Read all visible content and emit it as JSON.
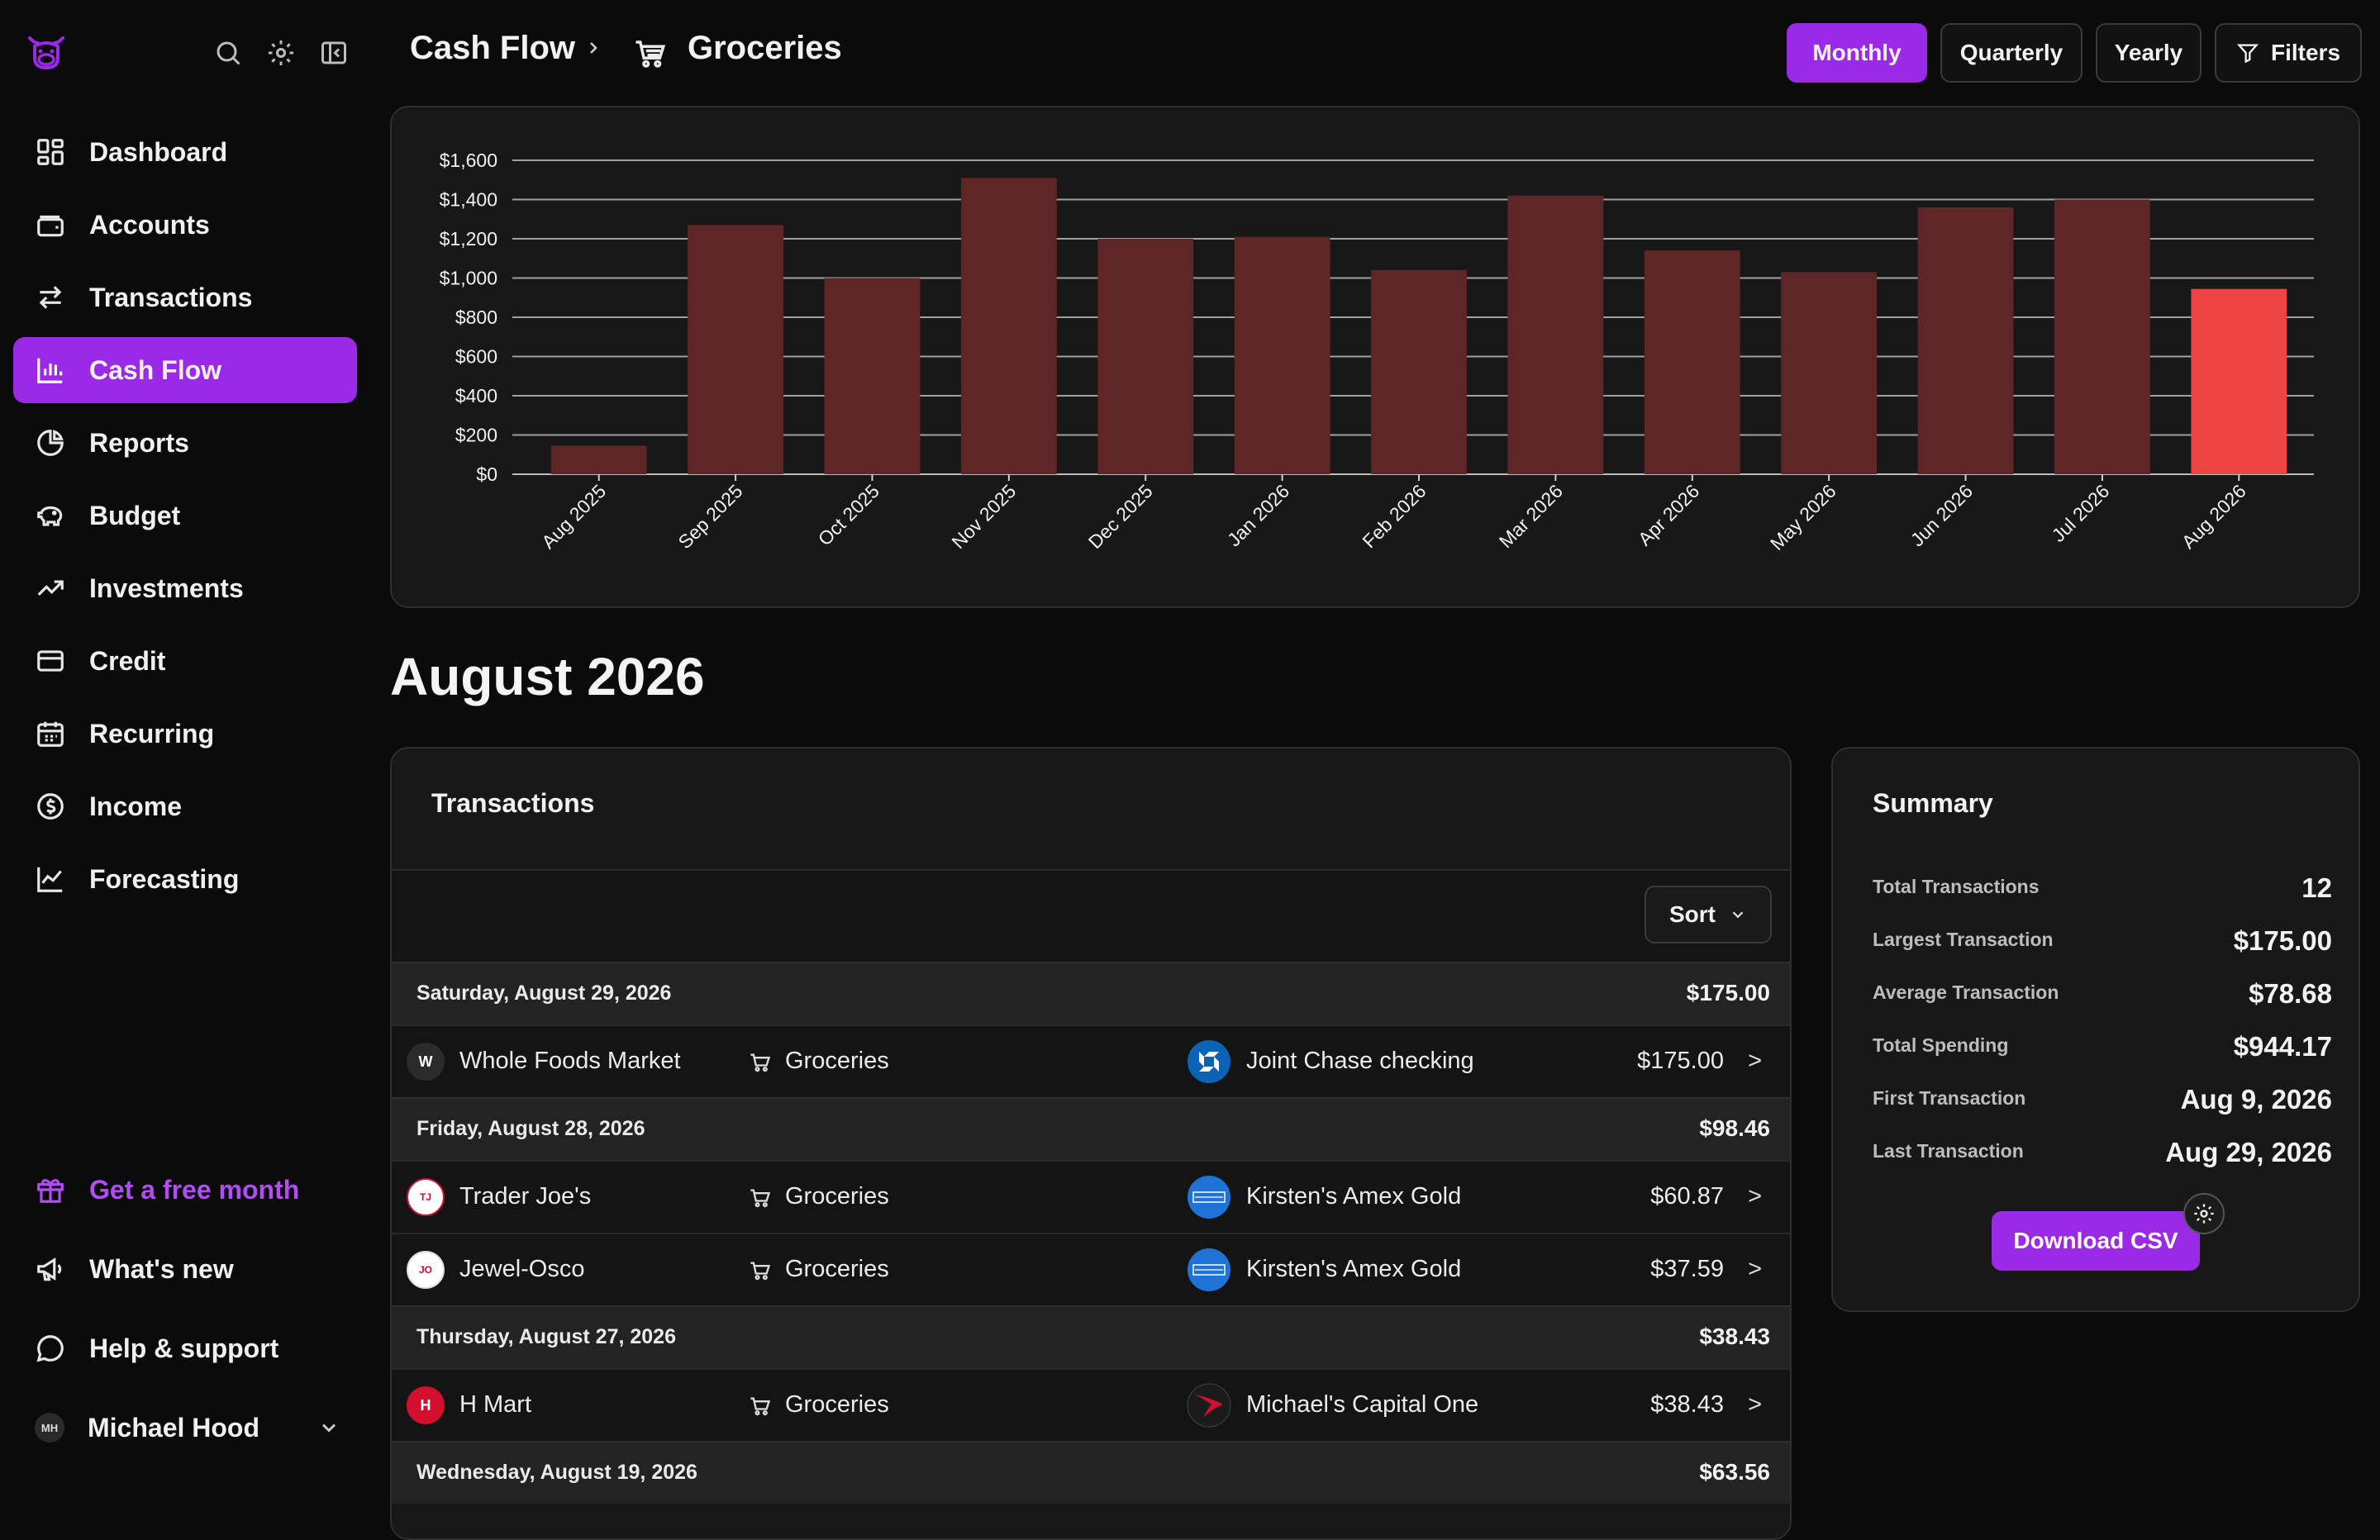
{
  "sidebar": {
    "items": [
      {
        "label": "Dashboard",
        "icon": "dashboard-icon",
        "active": false
      },
      {
        "label": "Accounts",
        "icon": "wallet-icon",
        "active": false
      },
      {
        "label": "Transactions",
        "icon": "arrows-swap-icon",
        "active": false
      },
      {
        "label": "Cash Flow",
        "icon": "bar-chart-icon",
        "active": true
      },
      {
        "label": "Reports",
        "icon": "pie-chart-icon",
        "active": false
      },
      {
        "label": "Budget",
        "icon": "piggy-bank-icon",
        "active": false
      },
      {
        "label": "Investments",
        "icon": "trend-up-icon",
        "active": false
      },
      {
        "label": "Credit",
        "icon": "credit-card-icon",
        "active": false
      },
      {
        "label": "Recurring",
        "icon": "calendar-icon",
        "active": false
      },
      {
        "label": "Income",
        "icon": "dollar-circle-icon",
        "active": false
      },
      {
        "label": "Forecasting",
        "icon": "line-chart-icon",
        "active": false
      }
    ],
    "promo": "Get a free month",
    "whats_new": "What's new",
    "help": "Help & support",
    "user": {
      "initials": "MH",
      "name": "Michael Hood"
    }
  },
  "header": {
    "crumb_parent": "Cash Flow",
    "crumb_current": "Groceries",
    "buttons": {
      "monthly": "Monthly",
      "quarterly": "Quarterly",
      "yearly": "Yearly",
      "filters": "Filters"
    },
    "active_period": "Monthly"
  },
  "chart_data": {
    "type": "bar",
    "categories": [
      "Aug 2025",
      "Sep 2025",
      "Oct 2025",
      "Nov 2025",
      "Dec 2025",
      "Jan 2026",
      "Feb 2026",
      "Mar 2026",
      "Apr 2026",
      "May 2026",
      "Jun 2026",
      "Jul 2026",
      "Aug 2026"
    ],
    "values": [
      145,
      1270,
      1000,
      1510,
      1200,
      1210,
      1040,
      1420,
      1140,
      1030,
      1360,
      1400,
      944.17
    ],
    "highlight_index": 12,
    "ylim": [
      0,
      1600
    ],
    "yticks": [
      "$0",
      "$200",
      "$400",
      "$600",
      "$800",
      "$1,000",
      "$1,200",
      "$1,400",
      "$1,600"
    ],
    "title": "",
    "xlabel": "",
    "ylabel": "",
    "grid": true,
    "colors": {
      "bar": "#5f2628",
      "highlight": "#ef4444",
      "grid": "#cfcfcf"
    }
  },
  "month_heading": "August 2026",
  "transactions": {
    "title": "Transactions",
    "sort_label": "Sort",
    "groups": [
      {
        "date": "Saturday, August 29, 2026",
        "total": "$175.00",
        "rows": [
          {
            "merchant": "Whole Foods Market",
            "merchant_logo": "W",
            "category": "Groceries",
            "account": "Joint Chase checking",
            "account_logo": "chase",
            "amount": "$175.00"
          }
        ]
      },
      {
        "date": "Friday, August 28, 2026",
        "total": "$98.46",
        "rows": [
          {
            "merchant": "Trader Joe's",
            "merchant_logo": "TJ",
            "category": "Groceries",
            "account": "Kirsten's Amex Gold",
            "account_logo": "amex",
            "amount": "$60.87"
          },
          {
            "merchant": "Jewel-Osco",
            "merchant_logo": "JO",
            "category": "Groceries",
            "account": "Kirsten's Amex Gold",
            "account_logo": "amex",
            "amount": "$37.59"
          }
        ]
      },
      {
        "date": "Thursday, August 27, 2026",
        "total": "$38.43",
        "rows": [
          {
            "merchant": "H Mart",
            "merchant_logo": "H",
            "category": "Groceries",
            "account": "Michael's Capital One",
            "account_logo": "capone",
            "amount": "$38.43"
          }
        ]
      },
      {
        "date": "Wednesday, August 19, 2026",
        "total": "$63.56",
        "rows": []
      }
    ]
  },
  "summary": {
    "title": "Summary",
    "rows": [
      {
        "label": "Total Transactions",
        "value": "12"
      },
      {
        "label": "Largest Transaction",
        "value": "$175.00"
      },
      {
        "label": "Average Transaction",
        "value": "$78.68"
      },
      {
        "label": "Total Spending",
        "value": "$944.17"
      },
      {
        "label": "First Transaction",
        "value": "Aug 9, 2026"
      },
      {
        "label": "Last Transaction",
        "value": "Aug 29, 2026"
      }
    ],
    "download_label": "Download CSV"
  }
}
